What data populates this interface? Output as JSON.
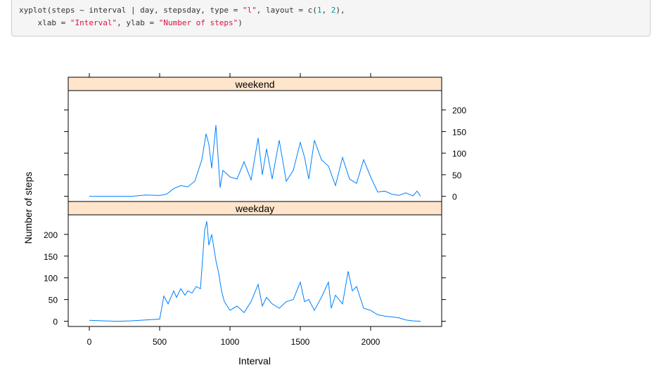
{
  "code": {
    "line1": [
      {
        "t": "xyplot(steps ~ interval | day, stepsday, type = ",
        "c": "plain"
      },
      {
        "t": "\"l\"",
        "c": "str"
      },
      {
        "t": ", layout = c(",
        "c": "plain"
      },
      {
        "t": "1",
        "c": "num"
      },
      {
        "t": ", ",
        "c": "plain"
      },
      {
        "t": "2",
        "c": "num"
      },
      {
        "t": "),",
        "c": "plain"
      }
    ],
    "line2": [
      {
        "t": "    xlab = ",
        "c": "plain"
      },
      {
        "t": "\"Interval\"",
        "c": "str"
      },
      {
        "t": ", ylab = ",
        "c": "plain"
      },
      {
        "t": "\"Number of steps\"",
        "c": "str"
      },
      {
        "t": ")",
        "c": "plain"
      }
    ]
  },
  "chart_data": {
    "type": "line",
    "xlabel": "Interval",
    "ylabel": "Number of steps",
    "xlim": [
      -150,
      2505
    ],
    "ylim": [
      -12,
      245
    ],
    "x_ticks": [
      0,
      500,
      1000,
      1500,
      2000
    ],
    "y_ticks": [
      0,
      50,
      100,
      150,
      200
    ],
    "line_color": "#0080ff",
    "strip_color": "#ffe5cc",
    "panels": [
      {
        "strip_label": "weekend",
        "x": [
          0,
          100,
          200,
          300,
          400,
          500,
          550,
          600,
          650,
          700,
          750,
          800,
          830,
          850,
          870,
          900,
          930,
          950,
          1000,
          1050,
          1100,
          1150,
          1200,
          1230,
          1260,
          1300,
          1350,
          1400,
          1450,
          1500,
          1530,
          1560,
          1600,
          1650,
          1700,
          1750,
          1800,
          1850,
          1900,
          1950,
          2000,
          2050,
          2100,
          2150,
          2200,
          2250,
          2300,
          2330,
          2355
        ],
        "y": [
          0,
          0,
          0,
          0,
          3,
          2,
          5,
          18,
          25,
          22,
          35,
          85,
          145,
          120,
          65,
          165,
          20,
          60,
          45,
          40,
          80,
          38,
          135,
          50,
          110,
          40,
          130,
          35,
          60,
          125,
          90,
          40,
          130,
          85,
          70,
          25,
          90,
          40,
          30,
          85,
          45,
          10,
          12,
          5,
          2,
          8,
          1,
          12,
          0
        ]
      },
      {
        "strip_label": "weekday",
        "x": [
          0,
          100,
          200,
          300,
          400,
          500,
          530,
          560,
          600,
          620,
          650,
          680,
          700,
          730,
          760,
          790,
          820,
          835,
          850,
          870,
          900,
          920,
          940,
          960,
          1000,
          1050,
          1100,
          1150,
          1200,
          1230,
          1260,
          1300,
          1350,
          1400,
          1450,
          1500,
          1530,
          1560,
          1600,
          1650,
          1700,
          1720,
          1750,
          1800,
          1840,
          1870,
          1900,
          1950,
          2000,
          2050,
          2100,
          2150,
          2200,
          2250,
          2300,
          2355
        ],
        "y": [
          2,
          1,
          0,
          1,
          3,
          5,
          58,
          40,
          70,
          55,
          75,
          60,
          70,
          65,
          80,
          75,
          210,
          230,
          175,
          200,
          140,
          110,
          70,
          45,
          25,
          35,
          20,
          45,
          85,
          35,
          55,
          40,
          30,
          45,
          50,
          90,
          45,
          50,
          25,
          55,
          90,
          30,
          60,
          40,
          115,
          70,
          80,
          30,
          25,
          15,
          12,
          10,
          8,
          3,
          1,
          0
        ]
      }
    ]
  }
}
